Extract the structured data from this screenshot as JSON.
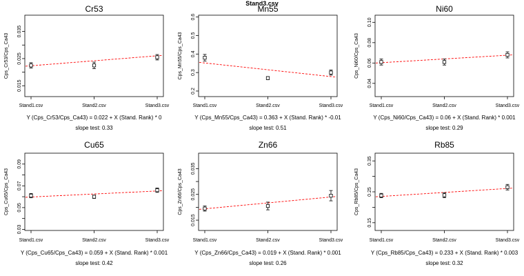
{
  "page_title": "Stand3.csv",
  "chart_data": [
    {
      "type": "scatter",
      "title": "Cr53",
      "ylabel": "Cps_Cr53/Cps_Ca43",
      "categories": [
        "Stand1.csv",
        "Stand2.csv",
        "Stand3.csv"
      ],
      "values": [
        0.0225,
        0.0225,
        0.0255
      ],
      "errors": [
        0.001,
        0.0012,
        0.001
      ],
      "yticks": [
        0.015,
        0.02,
        0.025,
        0.03,
        0.035
      ],
      "ytick_labels": [
        "0.015",
        "",
        "0.025",
        "",
        "0.035"
      ],
      "ylim": [
        0.011,
        0.041
      ],
      "fit": [
        0.0222,
        0.0262
      ],
      "equation": "Y (Cps_Cr53/Cps_Ca43) = 0.022 + X (Stand. Rank) * 0",
      "slope_test": "slope test: 0.33",
      "fit_color": "#ff0000"
    },
    {
      "type": "scatter",
      "title": "Mn55",
      "ylabel": "Cps_Mn55/Cps_Ca43",
      "categories": [
        "Stand1.csv",
        "Stand2.csv",
        "Stand3.csv"
      ],
      "values": [
        0.38,
        0.27,
        0.3
      ],
      "errors": [
        0.018,
        0.008,
        0.014
      ],
      "yticks": [
        0.2,
        0.3,
        0.4,
        0.5,
        0.6
      ],
      "ytick_labels": [
        "0.2",
        "0.3",
        "0.4",
        "0.5",
        "0.6"
      ],
      "ylim": [
        0.17,
        0.61
      ],
      "fit": [
        0.355,
        0.275
      ],
      "equation": "Y (Cps_Mn55/Cps_Ca43) = 0.363 + X (Stand. Rank) * -0.01",
      "slope_test": "slope test: 0.51",
      "fit_color": "#ff0000"
    },
    {
      "type": "scatter",
      "title": "Ni60",
      "ylabel": "Cps_Ni60/Cps_Ca43",
      "categories": [
        "Stand1.csv",
        "Stand2.csv",
        "Stand3.csv"
      ],
      "values": [
        0.061,
        0.061,
        0.068
      ],
      "errors": [
        0.003,
        0.003,
        0.003
      ],
      "yticks": [
        0.04,
        0.06,
        0.08,
        0.1
      ],
      "ytick_labels": [
        "0.04",
        "0.06",
        "0.08",
        "0.10"
      ],
      "ylim": [
        0.027,
        0.107
      ],
      "fit": [
        0.06,
        0.068
      ],
      "equation": "Y (Cps_Ni60/Cps_Ca43) = 0.06 + X (Stand. Rank) * 0.001",
      "slope_test": "slope test: 0.29",
      "fit_color": "#ff0000"
    },
    {
      "type": "scatter",
      "title": "Cu65",
      "ylabel": "Cps_Cu65/Cps_Ca43",
      "categories": [
        "Stand1.csv",
        "Stand2.csv",
        "Stand3.csv"
      ],
      "values": [
        0.061,
        0.06,
        0.066
      ],
      "errors": [
        0.002,
        0.0015,
        0.002
      ],
      "yticks": [
        0.03,
        0.04,
        0.05,
        0.06,
        0.07,
        0.08,
        0.09
      ],
      "ytick_labels": [
        "0.03",
        "",
        "0.05",
        "",
        "0.07",
        "",
        "0.09"
      ],
      "ylim": [
        0.029,
        0.1
      ],
      "fit": [
        0.0595,
        0.0655
      ],
      "equation": "Y (Cps_Cu65/Cps_Ca43) = 0.059 + X (Stand. Rank) * 0.001",
      "slope_test": "slope test: 0.42",
      "fit_color": "#ff0000"
    },
    {
      "type": "scatter",
      "title": "Zn66",
      "ylabel": "Cps_Zn66/Cps_Ca43",
      "categories": [
        "Stand1.csv",
        "Stand2.csv",
        "Stand3.csv"
      ],
      "values": [
        0.0195,
        0.0205,
        0.0245
      ],
      "errors": [
        0.001,
        0.0015,
        0.002
      ],
      "yticks": [
        0.015,
        0.02,
        0.025,
        0.03,
        0.035
      ],
      "ytick_labels": [
        "0.015",
        "",
        "0.025",
        "",
        "0.035"
      ],
      "ylim": [
        0.011,
        0.041
      ],
      "fit": [
        0.0192,
        0.0242
      ],
      "equation": "Y (Cps_Zn66/Cps_Ca43) = 0.019 + X (Stand. Rank) * 0.001",
      "slope_test": "slope test: 0.26",
      "fit_color": "#ff0000"
    },
    {
      "type": "scatter",
      "title": "Rb85",
      "ylabel": "Cps_Rb85/Cps_Ca43",
      "categories": [
        "Stand1.csv",
        "Stand2.csv",
        "Stand3.csv"
      ],
      "values": [
        0.238,
        0.239,
        0.265
      ],
      "errors": [
        0.007,
        0.008,
        0.009
      ],
      "yticks": [
        0.15,
        0.2,
        0.25,
        0.3,
        0.35
      ],
      "ytick_labels": [
        "0.15",
        "",
        "0.25",
        "",
        "0.35"
      ],
      "ylim": [
        0.125,
        0.375
      ],
      "fit": [
        0.234,
        0.262
      ],
      "equation": "Y (Cps_Rb85/Cps_Ca43) = 0.233 + X (Stand. Rank) * 0.003",
      "slope_test": "slope test: 0.32",
      "fit_color": "#ff0000"
    }
  ]
}
